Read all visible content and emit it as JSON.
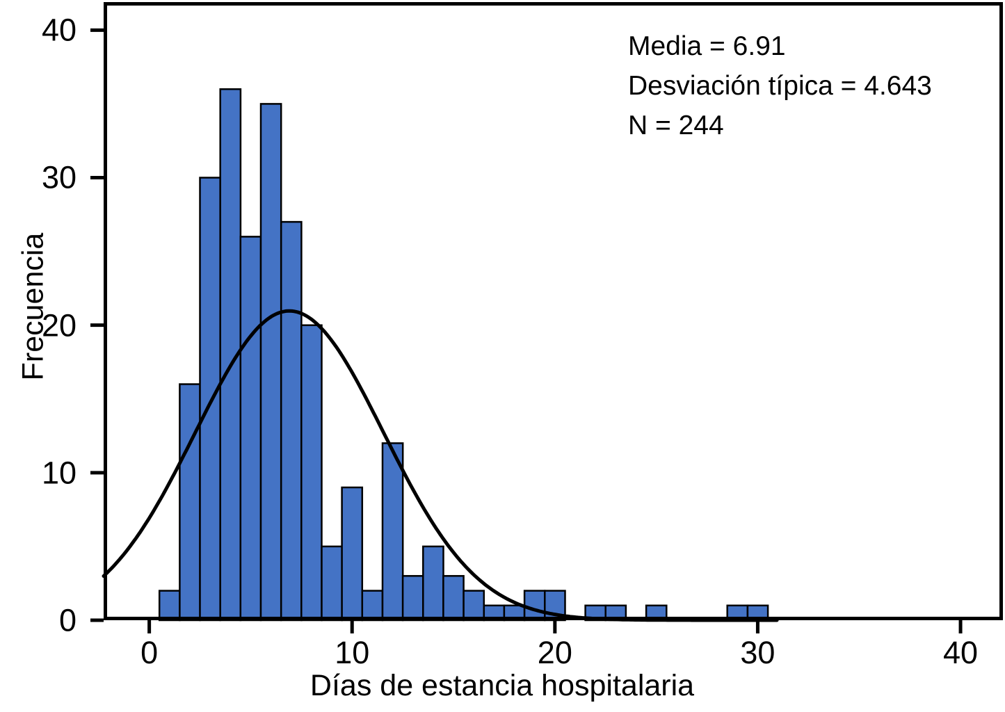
{
  "figure": {
    "background": "#ffffff",
    "xlabel": "Días de estancia hospitalaria",
    "ylabel": "Frecuencia",
    "stats": {
      "line1": "Media = 6.91",
      "line2": "Desviación típica = 4.643",
      "line3": "N = 244"
    }
  },
  "chart_data": {
    "type": "bar",
    "subtype": "histogram_with_normal_curve",
    "title": "",
    "xlabel": "Días de estancia hospitalaria",
    "ylabel": "Frecuencia",
    "bin_width": 1,
    "bin_centers": [
      1,
      2,
      3,
      4,
      5,
      6,
      7,
      8,
      9,
      10,
      11,
      12,
      13,
      14,
      15,
      16,
      17,
      18,
      19,
      20,
      21,
      22,
      23,
      24,
      25,
      26,
      27,
      28,
      29,
      30
    ],
    "counts": [
      2,
      16,
      30,
      36,
      26,
      35,
      27,
      20,
      5,
      9,
      2,
      12,
      3,
      5,
      3,
      2,
      1,
      1,
      2,
      2,
      0,
      1,
      1,
      0,
      1,
      0,
      0,
      0,
      1,
      1
    ],
    "x_ticks": [
      0,
      10,
      20,
      30,
      40
    ],
    "y_ticks": [
      0,
      10,
      20,
      30,
      40
    ],
    "xlim": [
      -2.25,
      42.09
    ],
    "ylim": [
      0,
      41.9
    ],
    "grid": false,
    "annotations": [
      "Media = 6.91",
      "Desviación típica = 4.643",
      "N = 244"
    ],
    "normal_curve": {
      "mean": 6.91,
      "sd": 4.643,
      "n": 244,
      "bin_width": 1,
      "x_start": -2.25,
      "x_end": 31
    },
    "bar_color": "#4473C5",
    "bar_edge_color": "#000000",
    "curve_color": "#000000",
    "frame_color": "#000000",
    "text_color": "#000000"
  }
}
